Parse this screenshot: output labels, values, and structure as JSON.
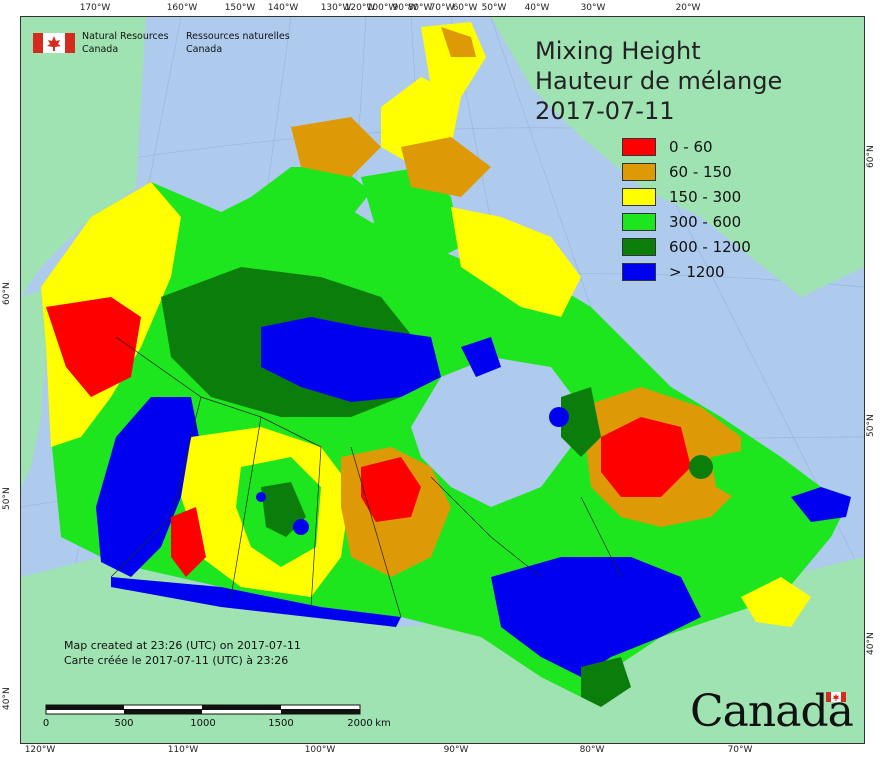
{
  "header": {
    "org_en": "Natural Resources",
    "org_en2": "Canada",
    "org_fr": "Ressources naturelles",
    "org_fr2": "Canada"
  },
  "title": {
    "line1": "Mixing Height",
    "line2": "Hauteur de mélange",
    "date": "2017-07-11"
  },
  "legend": [
    {
      "label": "0 - 60",
      "color": "#ff0000"
    },
    {
      "label": "60 - 150",
      "color": "#dd9a06"
    },
    {
      "label": "150 - 300",
      "color": "#ffff00"
    },
    {
      "label": "300 - 600",
      "color": "#1ee61e"
    },
    {
      "label": "600 - 1200",
      "color": "#0a7d0a"
    },
    {
      "label": "> 1200",
      "color": "#0000f0"
    }
  ],
  "credit": {
    "line1": "Map created at 23:26 (UTC) on 2017-07-11",
    "line2": "Carte créée le 2017-07-11 (UTC) à 23:26"
  },
  "scale": {
    "labels": [
      "0",
      "500",
      "1000",
      "1500",
      "2000"
    ],
    "unit": "km"
  },
  "wordmark": "Canada",
  "graticule": {
    "top": [
      "170°W",
      "160°W",
      "150°W",
      "140°W",
      "130°W",
      "120°W",
      "100°W",
      "90°W",
      "80°W",
      "70°W",
      "60°W",
      "50°W",
      "40°W",
      "30°W",
      "20°W"
    ],
    "bottom": [
      "120°W",
      "110°W",
      "100°W",
      "90°W",
      "80°W",
      "70°W"
    ],
    "left": [
      "60°N",
      "50°N",
      "40°N"
    ],
    "right": [
      "60°N",
      "50°N",
      "40°N"
    ]
  },
  "colors": {
    "ocean": "#aecbee",
    "land_outside": "#9fe3b2",
    "frame": "#333333"
  }
}
